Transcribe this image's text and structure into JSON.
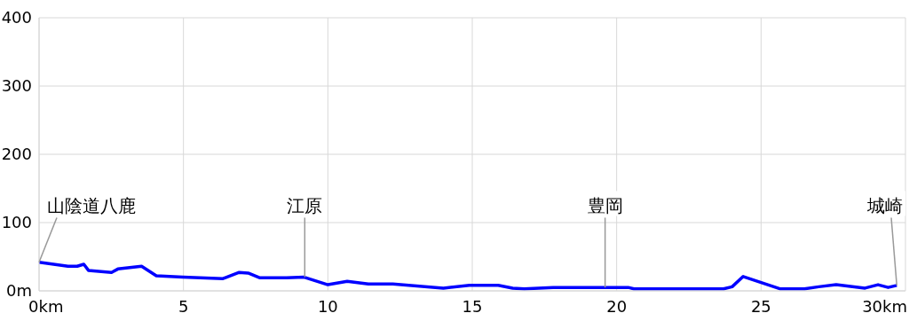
{
  "chart_data": {
    "type": "line",
    "x": [
      0,
      1.0,
      1.32,
      1.55,
      1.71,
      2.51,
      2.73,
      3.55,
      4.06,
      4.98,
      6.37,
      6.93,
      7.24,
      7.65,
      8.57,
      9.18,
      10.0,
      10.67,
      11.4,
      12.25,
      14.0,
      14.9,
      15.9,
      16.4,
      16.8,
      17.8,
      19.6,
      20.4,
      20.6,
      23.7,
      24.0,
      24.38,
      25.65,
      26.5,
      27.0,
      27.6,
      28.6,
      29.05,
      29.4,
      29.7
    ],
    "series": [
      {
        "color": "#0000ff",
        "values": [
          42,
          36,
          36,
          39,
          30,
          27,
          32,
          36,
          22,
          20,
          18,
          27,
          26,
          19,
          19,
          20,
          9,
          14,
          10,
          10,
          4,
          8,
          8,
          4,
          3,
          5,
          5,
          5,
          3,
          3,
          6,
          21,
          3,
          3,
          6,
          9,
          4,
          9,
          5,
          8
        ]
      }
    ],
    "annotations": [
      {
        "text": "山陰道八鹿",
        "x": 0,
        "y": 42
      },
      {
        "text": "江原",
        "x": 9.2,
        "y": 20
      },
      {
        "text": "豊岡",
        "x": 19.6,
        "y": 5
      },
      {
        "text": "城崎",
        "x": 29.7,
        "y": 8
      }
    ],
    "xlim": [
      0,
      30
    ],
    "xticks": [
      {
        "value": 0,
        "label": "0km"
      },
      5,
      10,
      15,
      20,
      25,
      {
        "value": 30,
        "label": "30km"
      }
    ],
    "ylim": [
      0,
      400
    ],
    "yticks": [
      {
        "value": 0,
        "label": "0m"
      },
      100,
      200,
      300,
      400
    ],
    "grid": true,
    "legend": false,
    "marker": "none",
    "line_style": "solid"
  }
}
